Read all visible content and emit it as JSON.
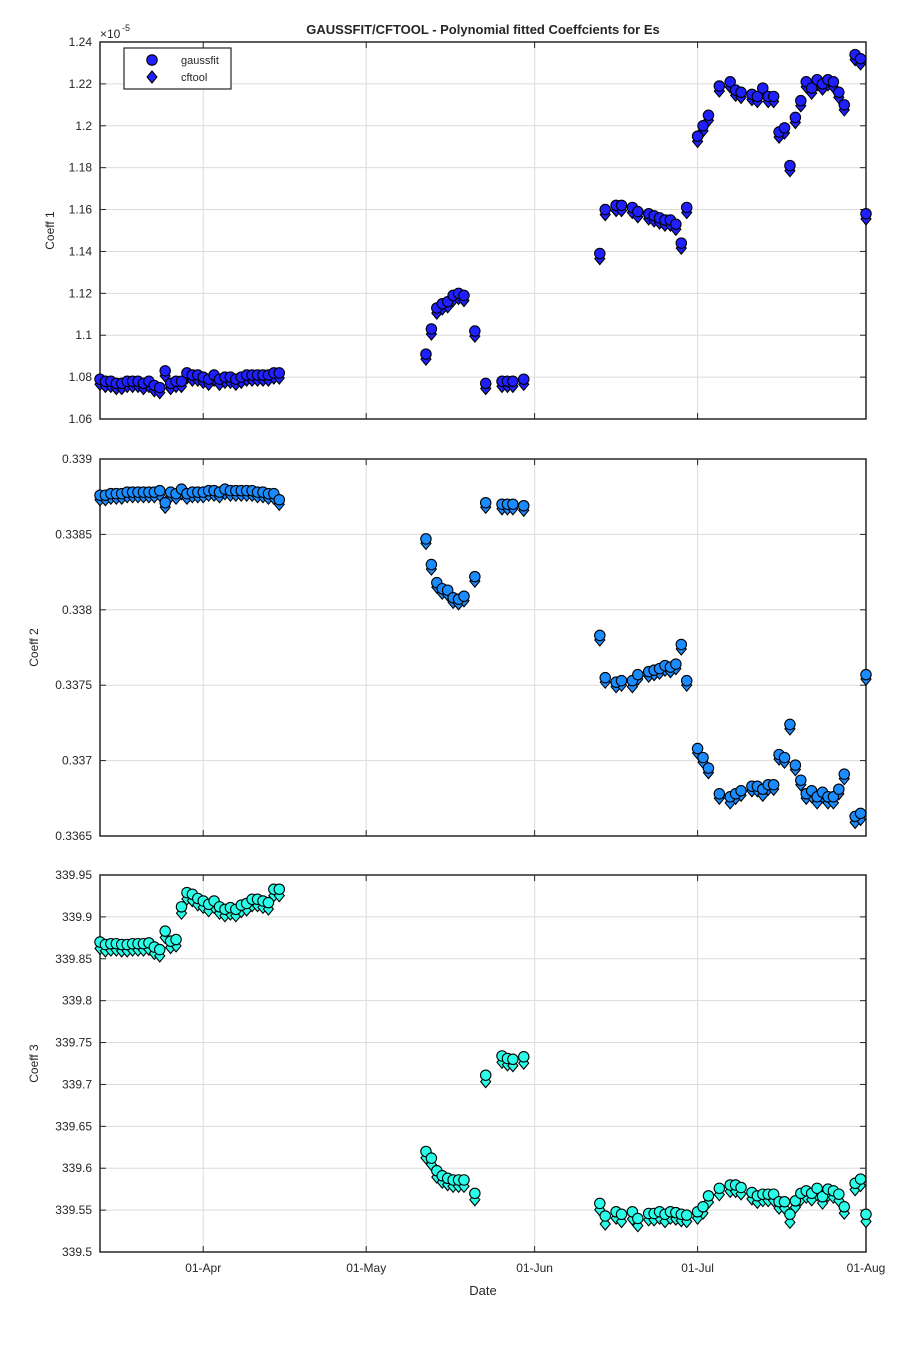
{
  "chart_data": {
    "type": "scatter",
    "title": "GAUSSFIT/CFTOOL - Polynomial fitted Coeffcients for Es",
    "xlabel": "Date",
    "x_ticks": [
      "01-Apr",
      "01-May",
      "01-Jun",
      "01-Jul",
      "01-Aug"
    ],
    "x_tick_dates": [
      "2017-04-01",
      "2017-05-01",
      "2017-06-01",
      "2017-07-01",
      "2017-08-01"
    ],
    "x_range": [
      "2017-03-13",
      "2017-08-01"
    ],
    "grid": true,
    "legend": {
      "placement": "top-left",
      "entries": [
        "gaussfit",
        "cftool"
      ]
    },
    "x": [
      "2017-03-13",
      "2017-03-14",
      "2017-03-15",
      "2017-03-16",
      "2017-03-17",
      "2017-03-18",
      "2017-03-19",
      "2017-03-20",
      "2017-03-21",
      "2017-03-22",
      "2017-03-23",
      "2017-03-24",
      "2017-03-25",
      "2017-03-26",
      "2017-03-27",
      "2017-03-28",
      "2017-03-29",
      "2017-03-30",
      "2017-03-31",
      "2017-04-01",
      "2017-04-02",
      "2017-04-03",
      "2017-04-04",
      "2017-04-05",
      "2017-04-06",
      "2017-04-07",
      "2017-04-08",
      "2017-04-09",
      "2017-04-10",
      "2017-04-11",
      "2017-04-12",
      "2017-04-13",
      "2017-04-14",
      "2017-04-15",
      "2017-05-12",
      "2017-05-13",
      "2017-05-14",
      "2017-05-15",
      "2017-05-16",
      "2017-05-17",
      "2017-05-18",
      "2017-05-19",
      "2017-05-21",
      "2017-05-23",
      "2017-05-26",
      "2017-05-27",
      "2017-05-28",
      "2017-05-30",
      "2017-06-13",
      "2017-06-14",
      "2017-06-16",
      "2017-06-17",
      "2017-06-19",
      "2017-06-20",
      "2017-06-22",
      "2017-06-23",
      "2017-06-24",
      "2017-06-25",
      "2017-06-26",
      "2017-06-27",
      "2017-06-28",
      "2017-06-29",
      "2017-07-01",
      "2017-07-02",
      "2017-07-03",
      "2017-07-05",
      "2017-07-07",
      "2017-07-08",
      "2017-07-09",
      "2017-07-11",
      "2017-07-12",
      "2017-07-13",
      "2017-07-14",
      "2017-07-15",
      "2017-07-16",
      "2017-07-17",
      "2017-07-18",
      "2017-07-19",
      "2017-07-20",
      "2017-07-21",
      "2017-07-22",
      "2017-07-23",
      "2017-07-24",
      "2017-07-25",
      "2017-07-26",
      "2017-07-27",
      "2017-07-28",
      "2017-07-30",
      "2017-07-31",
      "2017-08-01"
    ],
    "panels": [
      {
        "ylabel": "Coeff 1",
        "exponent_label": "×10",
        "exponent_power": "-5",
        "ylim": [
          1.06,
          1.24
        ],
        "yticks": [
          "1.06",
          "1.08",
          "1.1",
          "1.12",
          "1.14",
          "1.16",
          "1.18",
          "1.2",
          "1.22",
          "1.24"
        ],
        "series": [
          {
            "name": "gaussfit",
            "marker": "circle",
            "color": "#1f1fff",
            "values": [
              1.079,
              1.078,
              1.078,
              1.077,
              1.077,
              1.078,
              1.078,
              1.078,
              1.077,
              1.078,
              1.076,
              1.075,
              1.083,
              1.077,
              1.078,
              1.078,
              1.082,
              1.081,
              1.081,
              1.08,
              1.079,
              1.081,
              1.079,
              1.08,
              1.08,
              1.079,
              1.08,
              1.081,
              1.081,
              1.081,
              1.081,
              1.081,
              1.082,
              1.082,
              1.091,
              1.103,
              1.113,
              1.115,
              1.116,
              1.119,
              1.12,
              1.119,
              1.102,
              1.077,
              1.078,
              1.078,
              1.078,
              1.079,
              1.139,
              1.16,
              1.162,
              1.162,
              1.161,
              1.159,
              1.158,
              1.157,
              1.156,
              1.155,
              1.155,
              1.153,
              1.144,
              1.161,
              1.195,
              1.2,
              1.205,
              1.219,
              1.221,
              1.217,
              1.216,
              1.215,
              1.214,
              1.218,
              1.214,
              1.214,
              1.197,
              1.199,
              1.181,
              1.204,
              1.212,
              1.221,
              1.218,
              1.222,
              1.22,
              1.222,
              1.221,
              1.216,
              1.21,
              1.234,
              1.232,
              1.158
            ]
          },
          {
            "name": "cftool",
            "marker": "diamond",
            "color": "#1f1fff",
            "values": [
              1.078,
              1.077,
              1.077,
              1.076,
              1.076,
              1.077,
              1.077,
              1.077,
              1.076,
              1.077,
              1.075,
              1.074,
              1.082,
              1.076,
              1.077,
              1.077,
              1.081,
              1.08,
              1.08,
              1.079,
              1.078,
              1.08,
              1.078,
              1.079,
              1.079,
              1.078,
              1.079,
              1.08,
              1.08,
              1.08,
              1.08,
              1.08,
              1.081,
              1.081,
              1.09,
              1.102,
              1.112,
              1.114,
              1.115,
              1.118,
              1.119,
              1.118,
              1.101,
              1.076,
              1.077,
              1.077,
              1.077,
              1.078,
              1.138,
              1.159,
              1.161,
              1.161,
              1.16,
              1.158,
              1.157,
              1.156,
              1.155,
              1.154,
              1.154,
              1.152,
              1.143,
              1.16,
              1.194,
              1.199,
              1.204,
              1.218,
              1.22,
              1.216,
              1.215,
              1.214,
              1.213,
              1.217,
              1.213,
              1.213,
              1.196,
              1.198,
              1.18,
              1.203,
              1.211,
              1.22,
              1.217,
              1.221,
              1.219,
              1.221,
              1.22,
              1.215,
              1.209,
              1.233,
              1.231,
              1.157
            ]
          }
        ]
      },
      {
        "ylabel": "Coeff 2",
        "ylim": [
          0.3365,
          0.339
        ],
        "yticks": [
          "0.3365",
          "0.337",
          "0.3375",
          "0.338",
          "0.3385",
          "0.339"
        ],
        "series": [
          {
            "name": "gaussfit",
            "marker": "circle",
            "color": "#1a8cff",
            "values": [
              0.33876,
              0.33876,
              0.33877,
              0.33877,
              0.33877,
              0.33878,
              0.33878,
              0.33878,
              0.33878,
              0.33878,
              0.33878,
              0.33879,
              0.33871,
              0.33878,
              0.33877,
              0.3388,
              0.33877,
              0.33878,
              0.33878,
              0.33878,
              0.33879,
              0.33879,
              0.33878,
              0.3388,
              0.33879,
              0.33879,
              0.33879,
              0.33879,
              0.33879,
              0.33878,
              0.33878,
              0.33877,
              0.33877,
              0.33873,
              0.33847,
              0.3383,
              0.33818,
              0.33814,
              0.33813,
              0.33808,
              0.33807,
              0.33809,
              0.33822,
              0.33871,
              0.3387,
              0.3387,
              0.3387,
              0.33869,
              0.33783,
              0.33755,
              0.33752,
              0.33753,
              0.33753,
              0.33757,
              0.33759,
              0.3376,
              0.33761,
              0.33763,
              0.33762,
              0.33764,
              0.33777,
              0.33753,
              0.33708,
              0.33702,
              0.33695,
              0.33678,
              0.33676,
              0.33678,
              0.3368,
              0.33683,
              0.33683,
              0.33681,
              0.33684,
              0.33684,
              0.33704,
              0.33702,
              0.33724,
              0.33697,
              0.33687,
              0.33678,
              0.3368,
              0.33676,
              0.33679,
              0.33676,
              0.33676,
              0.33681,
              0.33691,
              0.33663,
              0.33665,
              0.33757
            ]
          },
          {
            "name": "cftool",
            "marker": "diamond",
            "color": "#1a8cff",
            "values": [
              0.33875,
              0.33875,
              0.33876,
              0.33876,
              0.33876,
              0.33877,
              0.33877,
              0.33877,
              0.33877,
              0.33877,
              0.33877,
              0.33878,
              0.3387,
              0.33877,
              0.33876,
              0.33879,
              0.33876,
              0.33877,
              0.33877,
              0.33877,
              0.33878,
              0.33878,
              0.33877,
              0.33879,
              0.33878,
              0.33878,
              0.33878,
              0.33878,
              0.33878,
              0.33877,
              0.33877,
              0.33876,
              0.33876,
              0.33872,
              0.33846,
              0.33829,
              0.33817,
              0.33813,
              0.33812,
              0.33807,
              0.33806,
              0.33808,
              0.33821,
              0.3387,
              0.33869,
              0.33869,
              0.33869,
              0.33868,
              0.33782,
              0.33754,
              0.33751,
              0.33752,
              0.33751,
              0.33756,
              0.33758,
              0.33759,
              0.3376,
              0.33762,
              0.33761,
              0.33763,
              0.33776,
              0.33752,
              0.33707,
              0.33701,
              0.33694,
              0.33677,
              0.33674,
              0.33677,
              0.33679,
              0.33682,
              0.33682,
              0.33679,
              0.33683,
              0.33683,
              0.33703,
              0.33701,
              0.33723,
              0.33696,
              0.33686,
              0.33677,
              0.33678,
              0.33674,
              0.33678,
              0.33674,
              0.33674,
              0.3368,
              0.3369,
              0.33661,
              0.33663,
              0.33756
            ]
          }
        ]
      },
      {
        "ylabel": "Coeff 3",
        "ylim": [
          339.5,
          339.95
        ],
        "yticks": [
          "339.5",
          "339.55",
          "339.6",
          "339.65",
          "339.7",
          "339.75",
          "339.8",
          "339.85",
          "339.9",
          "339.95"
        ],
        "series": [
          {
            "name": "gaussfit",
            "marker": "circle",
            "color": "#29ffe8",
            "values": [
              339.87,
              339.867,
              339.868,
              339.868,
              339.867,
              339.867,
              339.868,
              339.868,
              339.868,
              339.869,
              339.864,
              339.861,
              339.883,
              339.871,
              339.873,
              339.912,
              339.929,
              339.927,
              339.922,
              339.919,
              339.915,
              339.919,
              339.912,
              339.909,
              339.911,
              339.909,
              339.914,
              339.916,
              339.921,
              339.921,
              339.919,
              339.917,
              339.933,
              339.933,
              339.62,
              339.612,
              339.597,
              339.591,
              339.588,
              339.586,
              339.586,
              339.586,
              339.57,
              339.711,
              339.734,
              339.731,
              339.73,
              339.733,
              339.558,
              339.543,
              339.548,
              339.545,
              339.548,
              339.54,
              339.546,
              339.546,
              339.548,
              339.545,
              339.548,
              339.547,
              339.545,
              339.544,
              339.548,
              339.554,
              339.567,
              339.576,
              339.58,
              339.58,
              339.577,
              339.571,
              339.567,
              339.569,
              339.569,
              339.569,
              339.56,
              339.56,
              339.545,
              339.561,
              339.57,
              339.573,
              339.57,
              339.576,
              339.566,
              339.575,
              339.573,
              339.569,
              339.554,
              339.582,
              339.587,
              339.545
            ]
          },
          {
            "name": "cftool",
            "marker": "diamond",
            "color": "#29ffe8",
            "values": [
              339.866,
              339.863,
              339.864,
              339.864,
              339.863,
              339.863,
              339.864,
              339.864,
              339.864,
              339.865,
              339.86,
              339.857,
              339.879,
              339.867,
              339.869,
              339.908,
              339.925,
              339.923,
              339.918,
              339.915,
              339.911,
              339.915,
              339.908,
              339.905,
              339.907,
              339.905,
              339.91,
              339.912,
              339.917,
              339.917,
              339.915,
              339.913,
              339.929,
              339.929,
              339.616,
              339.608,
              339.593,
              339.587,
              339.584,
              339.582,
              339.582,
              339.582,
              339.566,
              339.707,
              339.73,
              339.727,
              339.726,
              339.729,
              339.554,
              339.537,
              339.544,
              339.54,
              339.543,
              339.535,
              339.542,
              339.542,
              339.544,
              339.54,
              339.544,
              339.543,
              339.541,
              339.54,
              339.544,
              339.55,
              339.563,
              339.572,
              339.576,
              339.576,
              339.573,
              339.567,
              339.563,
              339.565,
              339.565,
              339.565,
              339.556,
              339.556,
              339.539,
              339.557,
              339.566,
              339.569,
              339.566,
              339.572,
              339.562,
              339.571,
              339.569,
              339.565,
              339.55,
              339.578,
              339.583,
              339.54
            ]
          }
        ]
      }
    ]
  }
}
